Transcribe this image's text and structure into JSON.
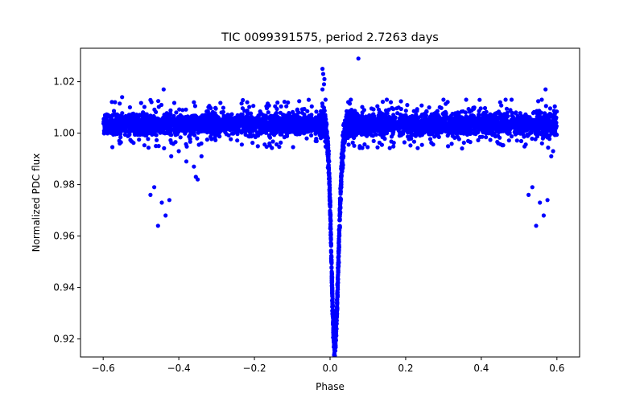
{
  "chart_data": {
    "type": "scatter",
    "title": "TIC 0099391575, period 2.7263 days",
    "xlabel": "Phase",
    "ylabel": "Normalized PDC flux",
    "xlim": [
      -0.66,
      0.66
    ],
    "ylim": [
      0.913,
      1.033
    ],
    "xticks": [
      -0.6,
      -0.4,
      -0.2,
      0.0,
      0.2,
      0.4,
      0.6
    ],
    "xtick_labels": [
      "−0.6",
      "−0.4",
      "−0.2",
      "0.0",
      "0.2",
      "0.4",
      "0.6"
    ],
    "yticks": [
      0.92,
      0.94,
      0.96,
      0.98,
      1.0,
      1.02
    ],
    "ytick_labels": [
      "0.92",
      "0.94",
      "0.96",
      "0.98",
      "1.00",
      "1.02"
    ],
    "grid": false,
    "marker_color": "#0000ff",
    "baseline": {
      "x_range": [
        -0.6,
        0.6
      ],
      "flux_center": 1.0035,
      "flux_band": [
        0.998,
        1.009
      ]
    },
    "transit": {
      "center_phase": 0.012,
      "depth_min_flux": 0.918,
      "ingress_phase": -0.01,
      "egress_phase": 0.045
    },
    "outliers": [
      {
        "x": -0.475,
        "y": 0.976
      },
      {
        "x": -0.465,
        "y": 0.979
      },
      {
        "x": -0.455,
        "y": 0.964
      },
      {
        "x": -0.445,
        "y": 0.973
      },
      {
        "x": -0.435,
        "y": 0.968
      },
      {
        "x": -0.425,
        "y": 0.974
      },
      {
        "x": -0.42,
        "y": 0.991
      },
      {
        "x": -0.4,
        "y": 0.993
      },
      {
        "x": -0.38,
        "y": 0.989
      },
      {
        "x": -0.36,
        "y": 0.987
      },
      {
        "x": -0.355,
        "y": 0.983
      },
      {
        "x": -0.35,
        "y": 0.982
      },
      {
        "x": -0.34,
        "y": 0.991
      },
      {
        "x": -0.44,
        "y": 1.017
      },
      {
        "x": -0.39,
        "y": 1.009
      },
      {
        "x": -0.36,
        "y": 1.012
      },
      {
        "x": -0.55,
        "y": 1.014
      },
      {
        "x": -0.02,
        "y": 1.025
      },
      {
        "x": -0.018,
        "y": 1.023
      },
      {
        "x": -0.015,
        "y": 1.021
      },
      {
        "x": -0.016,
        "y": 1.019
      },
      {
        "x": -0.02,
        "y": 1.017
      },
      {
        "x": -0.012,
        "y": 1.013
      },
      {
        "x": 0.075,
        "y": 1.029
      },
      {
        "x": 0.055,
        "y": 1.013
      },
      {
        "x": 0.15,
        "y": 1.013
      },
      {
        "x": 0.3,
        "y": 1.013
      },
      {
        "x": 0.36,
        "y": 1.013
      },
      {
        "x": 0.48,
        "y": 1.013
      },
      {
        "x": 0.525,
        "y": 0.976
      },
      {
        "x": 0.535,
        "y": 0.979
      },
      {
        "x": 0.545,
        "y": 0.964
      },
      {
        "x": 0.555,
        "y": 0.973
      },
      {
        "x": 0.565,
        "y": 0.968
      },
      {
        "x": 0.575,
        "y": 0.974
      },
      {
        "x": 0.57,
        "y": 1.017
      },
      {
        "x": 0.56,
        "y": 1.013
      },
      {
        "x": 0.585,
        "y": 0.991
      },
      {
        "x": 0.59,
        "y": 0.993
      }
    ]
  }
}
